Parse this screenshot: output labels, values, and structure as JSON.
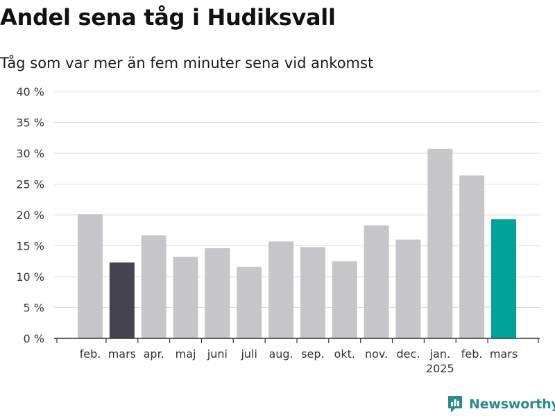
{
  "chart_data": {
    "type": "bar",
    "title": "Andel sena tåg i Hudiksvall",
    "subtitle": "Tåg som var mer än fem minuter sena vid ankomst",
    "xlabel": "",
    "ylabel": "",
    "ylim": [
      0,
      40
    ],
    "yticks": [
      0,
      5,
      10,
      15,
      20,
      25,
      30,
      35,
      40
    ],
    "ytick_labels": [
      "0 %",
      "5 %",
      "10 %",
      "15 %",
      "20 %",
      "25 %",
      "30 %",
      "35 %",
      "40 %"
    ],
    "grid": true,
    "categories": [
      "feb.",
      "mars",
      "apr.",
      "maj",
      "juni",
      "juli",
      "aug.",
      "sep.",
      "okt.",
      "nov.",
      "dec.",
      "jan.",
      "feb.",
      "mars"
    ],
    "year_labels": [
      "",
      "",
      "",
      "",
      "",
      "",
      "",
      "",
      "",
      "",
      "",
      "2025",
      "",
      ""
    ],
    "values": [
      20.1,
      12.3,
      16.7,
      13.2,
      14.6,
      11.6,
      15.7,
      14.8,
      12.5,
      18.3,
      16.0,
      30.7,
      26.4,
      19.3
    ],
    "bar_colors": [
      "#c6c5ca",
      "#44434f",
      "#c6c5ca",
      "#c6c5ca",
      "#c6c5ca",
      "#c6c5ca",
      "#c6c5ca",
      "#c6c5ca",
      "#c6c5ca",
      "#c6c5ca",
      "#c6c5ca",
      "#c6c5ca",
      "#c6c5ca",
      "#00a397"
    ]
  },
  "branding": {
    "name": "Newsworthy",
    "color": "#2a8c8c",
    "icon": "newsworthy-logo-icon"
  }
}
